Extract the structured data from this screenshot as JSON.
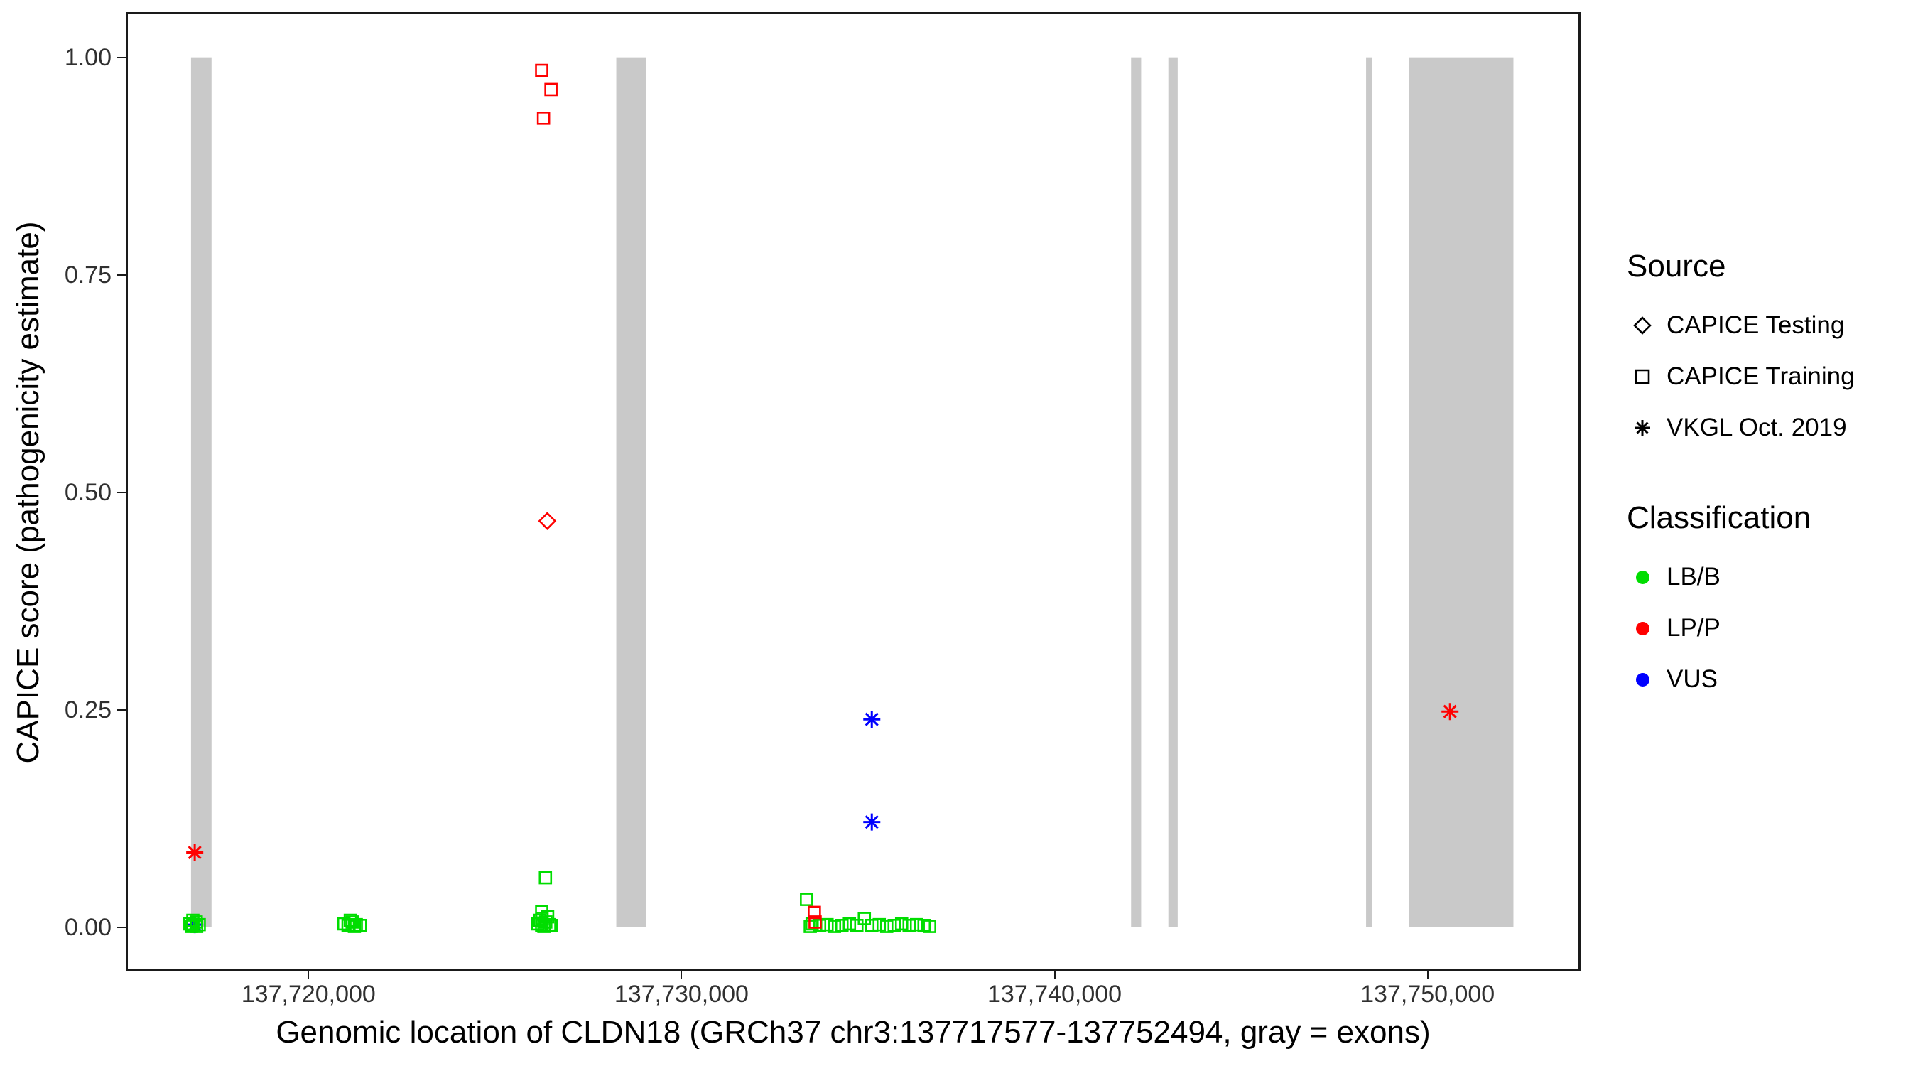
{
  "legend": {
    "source": {
      "title": "Source",
      "items": [
        {
          "label": "CAPICE Testing",
          "shape": "diamond"
        },
        {
          "label": "CAPICE Training",
          "shape": "square"
        },
        {
          "label": "VKGL Oct. 2019",
          "shape": "asterisk"
        }
      ]
    },
    "classification": {
      "title": "Classification",
      "items": [
        {
          "label": "LB/B",
          "color": "#00dd00"
        },
        {
          "label": "LP/P",
          "color": "#ff0000"
        },
        {
          "label": "VUS",
          "color": "#0000ff"
        }
      ]
    }
  },
  "chart_data": {
    "type": "scatter",
    "title": "",
    "xlabel": "Genomic location of CLDN18 (GRCh37 chr3:137717577-137752494, gray = exons)",
    "ylabel": "CAPICE score (pathogenicity estimate)",
    "x_domain": [
      137715100,
      137754100
    ],
    "y_domain": [
      -0.05,
      1.052
    ],
    "grid": false,
    "legend_position": "right",
    "x_ticks": [
      {
        "value": 137720000,
        "label": "137,720,000"
      },
      {
        "value": 137730000,
        "label": "137,730,000"
      },
      {
        "value": 137740000,
        "label": "137,740,000"
      },
      {
        "value": 137750000,
        "label": "137,750,000"
      }
    ],
    "y_ticks": [
      {
        "value": 0.0,
        "label": "0.00"
      },
      {
        "value": 0.25,
        "label": "0.25"
      },
      {
        "value": 0.5,
        "label": "0.50"
      },
      {
        "value": 0.75,
        "label": "0.75"
      },
      {
        "value": 1.0,
        "label": "1.00"
      }
    ],
    "exon_color": "#c9c9c9",
    "exons": [
      [
        137716850,
        137717400
      ],
      [
        137728250,
        137729050
      ],
      [
        137742050,
        137742320
      ],
      [
        137743050,
        137743300
      ],
      [
        137748350,
        137748520
      ],
      [
        137749500,
        137752300
      ]
    ],
    "point_colors": {
      "LB/B": "#00dd00",
      "LP/P": "#ff0000",
      "VUS": "#0000ff"
    },
    "source_shapes": {
      "CAPICE Testing": "diamond",
      "CAPICE Training": "square",
      "VKGL Oct. 2019": "asterisk"
    },
    "points": [
      {
        "x": 137726250,
        "y": 0.985,
        "source": "CAPICE Training",
        "classification": "LP/P"
      },
      {
        "x": 137726500,
        "y": 0.963,
        "source": "CAPICE Training",
        "classification": "LP/P"
      },
      {
        "x": 137726300,
        "y": 0.93,
        "source": "CAPICE Training",
        "classification": "LP/P"
      },
      {
        "x": 137726400,
        "y": 0.467,
        "source": "CAPICE Testing",
        "classification": "LP/P"
      },
      {
        "x": 137716950,
        "y": 0.086,
        "source": "VKGL Oct. 2019",
        "classification": "LP/P"
      },
      {
        "x": 137716950,
        "y": 0.003,
        "source": "VKGL Oct. 2019",
        "classification": "VUS"
      },
      {
        "x": 137735100,
        "y": 0.239,
        "source": "VKGL Oct. 2019",
        "classification": "VUS"
      },
      {
        "x": 137735100,
        "y": 0.121,
        "source": "VKGL Oct. 2019",
        "classification": "VUS"
      },
      {
        "x": 137750600,
        "y": 0.248,
        "source": "VKGL Oct. 2019",
        "classification": "LP/P"
      },
      {
        "x": 137716820,
        "y": 0.004,
        "source": "CAPICE Training",
        "classification": "LB/B"
      },
      {
        "x": 137716900,
        "y": 0.002,
        "source": "CAPICE Training",
        "classification": "LB/B"
      },
      {
        "x": 137716990,
        "y": 0.006,
        "source": "CAPICE Training",
        "classification": "LB/B"
      },
      {
        "x": 137717070,
        "y": 0.003,
        "source": "CAPICE Training",
        "classification": "LB/B"
      },
      {
        "x": 137716900,
        "y": 0.008,
        "source": "CAPICE Training",
        "classification": "LB/B"
      },
      {
        "x": 137717000,
        "y": 0.001,
        "source": "CAPICE Training",
        "classification": "LB/B"
      },
      {
        "x": 137716860,
        "y": 0.001,
        "source": "CAPICE Training",
        "classification": "LB/B"
      },
      {
        "x": 137720950,
        "y": 0.004,
        "source": "CAPICE Training",
        "classification": "LB/B"
      },
      {
        "x": 137721060,
        "y": 0.002,
        "source": "CAPICE Training",
        "classification": "LB/B"
      },
      {
        "x": 137721170,
        "y": 0.006,
        "source": "CAPICE Training",
        "classification": "LB/B"
      },
      {
        "x": 137721280,
        "y": 0.003,
        "source": "CAPICE Training",
        "classification": "LB/B"
      },
      {
        "x": 137721390,
        "y": 0.002,
        "source": "CAPICE Training",
        "classification": "LB/B"
      },
      {
        "x": 137721120,
        "y": 0.008,
        "source": "CAPICE Training",
        "classification": "LB/B"
      },
      {
        "x": 137721230,
        "y": 0.001,
        "source": "CAPICE Training",
        "classification": "LB/B"
      },
      {
        "x": 137726350,
        "y": 0.057,
        "source": "CAPICE Training",
        "classification": "LB/B"
      },
      {
        "x": 137726250,
        "y": 0.018,
        "source": "CAPICE Training",
        "classification": "LB/B"
      },
      {
        "x": 137726150,
        "y": 0.004,
        "source": "CAPICE Training",
        "classification": "LB/B"
      },
      {
        "x": 137726250,
        "y": 0.002,
        "source": "CAPICE Training",
        "classification": "LB/B"
      },
      {
        "x": 137726360,
        "y": 0.006,
        "source": "CAPICE Training",
        "classification": "LB/B"
      },
      {
        "x": 137726460,
        "y": 0.003,
        "source": "CAPICE Training",
        "classification": "LB/B"
      },
      {
        "x": 137726260,
        "y": 0.01,
        "source": "CAPICE Training",
        "classification": "LB/B"
      },
      {
        "x": 137726410,
        "y": 0.012,
        "source": "CAPICE Training",
        "classification": "LB/B"
      },
      {
        "x": 137726310,
        "y": 0.001,
        "source": "CAPICE Training",
        "classification": "LB/B"
      },
      {
        "x": 137726510,
        "y": 0.002,
        "source": "CAPICE Training",
        "classification": "LB/B"
      },
      {
        "x": 137726200,
        "y": 0.008,
        "source": "CAPICE Training",
        "classification": "LB/B"
      },
      {
        "x": 137733350,
        "y": 0.032,
        "source": "CAPICE Training",
        "classification": "LB/B"
      },
      {
        "x": 137733500,
        "y": 0.004,
        "source": "CAPICE Training",
        "classification": "LB/B"
      },
      {
        "x": 137733700,
        "y": 0.002,
        "source": "CAPICE Training",
        "classification": "LB/B"
      },
      {
        "x": 137733900,
        "y": 0.003,
        "source": "CAPICE Training",
        "classification": "LB/B"
      },
      {
        "x": 137734100,
        "y": 0.001,
        "source": "CAPICE Training",
        "classification": "LB/B"
      },
      {
        "x": 137734300,
        "y": 0.002,
        "source": "CAPICE Training",
        "classification": "LB/B"
      },
      {
        "x": 137734500,
        "y": 0.004,
        "source": "CAPICE Training",
        "classification": "LB/B"
      },
      {
        "x": 137734700,
        "y": 0.002,
        "source": "CAPICE Training",
        "classification": "LB/B"
      },
      {
        "x": 137734900,
        "y": 0.01,
        "source": "CAPICE Training",
        "classification": "LB/B"
      },
      {
        "x": 137735100,
        "y": 0.002,
        "source": "CAPICE Training",
        "classification": "LB/B"
      },
      {
        "x": 137735300,
        "y": 0.003,
        "source": "CAPICE Training",
        "classification": "LB/B"
      },
      {
        "x": 137735500,
        "y": 0.001,
        "source": "CAPICE Training",
        "classification": "LB/B"
      },
      {
        "x": 137735700,
        "y": 0.002,
        "source": "CAPICE Training",
        "classification": "LB/B"
      },
      {
        "x": 137735900,
        "y": 0.004,
        "source": "CAPICE Training",
        "classification": "LB/B"
      },
      {
        "x": 137736100,
        "y": 0.002,
        "source": "CAPICE Training",
        "classification": "LB/B"
      },
      {
        "x": 137736300,
        "y": 0.003,
        "source": "CAPICE Training",
        "classification": "LB/B"
      },
      {
        "x": 137736500,
        "y": 0.002,
        "source": "CAPICE Training",
        "classification": "LB/B"
      },
      {
        "x": 137736650,
        "y": 0.001,
        "source": "CAPICE Training",
        "classification": "LB/B"
      },
      {
        "x": 137733450,
        "y": 0.001,
        "source": "CAPICE Training",
        "classification": "LB/B"
      },
      {
        "x": 137733560,
        "y": 0.017,
        "source": "CAPICE Training",
        "classification": "LP/P"
      },
      {
        "x": 137733580,
        "y": 0.006,
        "source": "CAPICE Training",
        "classification": "LP/P"
      }
    ]
  }
}
